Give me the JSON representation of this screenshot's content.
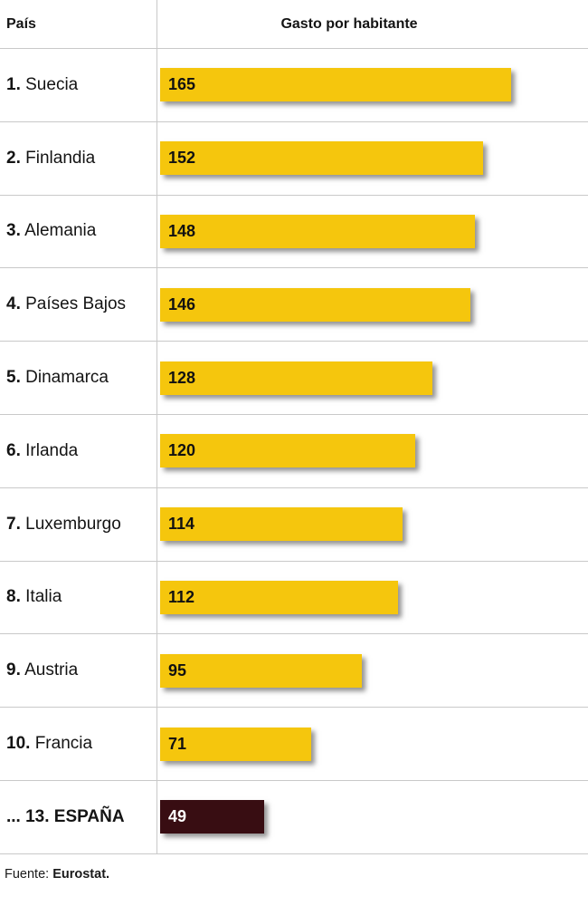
{
  "header": {
    "country_col": "País",
    "value_col": "Gasto por habitante"
  },
  "rows": [
    {
      "rank": "1.",
      "country": "Suecia",
      "value": 165,
      "highlight": false
    },
    {
      "rank": "2.",
      "country": "Finlandia",
      "value": 152,
      "highlight": false
    },
    {
      "rank": "3.",
      "country": "Alemania",
      "value": 148,
      "highlight": false
    },
    {
      "rank": "4.",
      "country": "Países Bajos",
      "value": 146,
      "highlight": false
    },
    {
      "rank": "5.",
      "country": "Dinamarca",
      "value": 128,
      "highlight": false
    },
    {
      "rank": "6.",
      "country": "Irlanda",
      "value": 120,
      "highlight": false
    },
    {
      "rank": "7.",
      "country": "Luxemburgo",
      "value": 114,
      "highlight": false
    },
    {
      "rank": "8.",
      "country": "Italia",
      "value": 112,
      "highlight": false
    },
    {
      "rank": "9.",
      "country": "Austria",
      "value": 95,
      "highlight": false
    },
    {
      "rank": "10.",
      "country": "Francia",
      "value": 71,
      "highlight": false
    },
    {
      "rank": "... 13.",
      "country": "ESPAÑA",
      "value": 49,
      "highlight": true
    }
  ],
  "footer": {
    "label": "Fuente:",
    "source": "Eurostat."
  },
  "colors": {
    "bar": "#F5C60D",
    "bar_highlight": "#380D12",
    "value_text": "#111111",
    "value_text_highlight": "#FFFFFF",
    "divider": "#C9C9C9"
  },
  "chart_data": {
    "type": "bar",
    "orientation": "horizontal",
    "title": "Gasto por habitante",
    "categories": [
      "Suecia",
      "Finlandia",
      "Alemania",
      "Países Bajos",
      "Dinamarca",
      "Irlanda",
      "Luxemburgo",
      "Italia",
      "Austria",
      "Francia",
      "ESPAÑA"
    ],
    "ranks": [
      "1.",
      "2.",
      "3.",
      "4.",
      "5.",
      "6.",
      "7.",
      "8.",
      "9.",
      "10.",
      "... 13."
    ],
    "values": [
      165,
      152,
      148,
      146,
      128,
      120,
      114,
      112,
      95,
      71,
      49
    ],
    "highlighted_category": "ESPAÑA",
    "xlabel": "",
    "ylabel": "País",
    "xlim": [
      0,
      200
    ],
    "grid": false,
    "legend": false,
    "data_labels": true,
    "source": "Fuente: Eurostat."
  }
}
